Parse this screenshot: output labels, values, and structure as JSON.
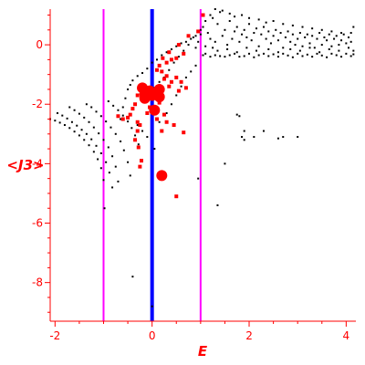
{
  "chart_data": {
    "type": "scatter",
    "title": "",
    "xlabel": "E",
    "ylabel": "<J3>",
    "xlim": [
      -2.1,
      4.2
    ],
    "ylim": [
      -9.3,
      1.2
    ],
    "x_ticks": [
      -2,
      0,
      2,
      4
    ],
    "y_ticks": [
      0,
      -2,
      -4,
      -6,
      -8
    ],
    "grid": false,
    "legend": "none",
    "colors": {
      "axis": "#ff0000",
      "small_points": "#000000",
      "red_points": "#ff0000",
      "center_line": "#0000ff",
      "side_lines": "#ff00ff"
    },
    "vertical_lines": [
      {
        "x": 0,
        "color": "#0000ff",
        "style": "thick"
      },
      {
        "x": -1,
        "color": "#ff00ff",
        "style": "thin"
      },
      {
        "x": 1,
        "color": "#ff00ff",
        "style": "thin"
      }
    ],
    "series": [
      {
        "marker": "dot",
        "color": "#000000",
        "description_points": [
          [
            -2.1,
            -2.5
          ],
          [
            -2.0,
            -2.55
          ],
          [
            -1.9,
            -2.62
          ],
          [
            -1.8,
            -2.7
          ],
          [
            -1.7,
            -2.8
          ],
          [
            -1.6,
            -2.92
          ],
          [
            -1.5,
            -3.05
          ],
          [
            -1.4,
            -3.2
          ],
          [
            -1.3,
            -3.38
          ],
          [
            -1.2,
            -3.6
          ],
          [
            -1.12,
            -3.85
          ],
          [
            -1.05,
            -4.15
          ],
          [
            -1.0,
            -4.55
          ],
          [
            -0.98,
            -5.5
          ],
          [
            -1.95,
            -2.3
          ],
          [
            -1.85,
            -2.38
          ],
          [
            -1.75,
            -2.48
          ],
          [
            -1.65,
            -2.6
          ],
          [
            -1.55,
            -2.72
          ],
          [
            -1.45,
            -2.86
          ],
          [
            -1.35,
            -3.0
          ],
          [
            -1.25,
            -3.18
          ],
          [
            -1.15,
            -3.4
          ],
          [
            -1.05,
            -3.65
          ],
          [
            -0.95,
            -3.95
          ],
          [
            -0.88,
            -4.3
          ],
          [
            -0.82,
            -4.8
          ],
          [
            -1.7,
            -2.1
          ],
          [
            -1.6,
            -2.2
          ],
          [
            -1.5,
            -2.32
          ],
          [
            -1.4,
            -2.45
          ],
          [
            -1.3,
            -2.6
          ],
          [
            -1.2,
            -2.78
          ],
          [
            -1.1,
            -2.98
          ],
          [
            -1.0,
            -3.2
          ],
          [
            -0.9,
            -3.45
          ],
          [
            -0.82,
            -3.75
          ],
          [
            -0.75,
            -4.1
          ],
          [
            -0.7,
            -4.6
          ],
          [
            -1.35,
            -2.0
          ],
          [
            -1.25,
            -2.1
          ],
          [
            -1.15,
            -2.25
          ],
          [
            -1.05,
            -2.4
          ],
          [
            -0.95,
            -2.58
          ],
          [
            -0.85,
            -2.78
          ],
          [
            -0.75,
            -3.0
          ],
          [
            -0.65,
            -3.25
          ],
          [
            -0.58,
            -3.55
          ],
          [
            -0.5,
            -3.95
          ],
          [
            -0.45,
            -4.4
          ],
          [
            -0.9,
            -1.9
          ],
          [
            -0.8,
            -2.05
          ],
          [
            -0.7,
            -2.2
          ],
          [
            -0.6,
            -2.38
          ],
          [
            -0.5,
            -2.58
          ],
          [
            -0.42,
            -2.8
          ],
          [
            -0.35,
            -3.05
          ],
          [
            -0.28,
            -3.35
          ],
          [
            -0.5,
            -1.5
          ],
          [
            -0.45,
            -1.35
          ],
          [
            -0.4,
            -1.2
          ],
          [
            -0.3,
            -1.05
          ],
          [
            -0.2,
            -0.95
          ],
          [
            -0.1,
            -0.8
          ],
          [
            0.0,
            -0.6
          ],
          [
            0.1,
            -0.5
          ],
          [
            0.2,
            -0.35
          ],
          [
            0.3,
            -0.25
          ],
          [
            0.4,
            -0.15
          ],
          [
            0.5,
            -0.05
          ],
          [
            0.6,
            0.05
          ],
          [
            0.7,
            0.1
          ],
          [
            0.8,
            0.2
          ],
          [
            0.9,
            0.3
          ],
          [
            1.0,
            0.35
          ],
          [
            -0.6,
            -2.1
          ],
          [
            -0.55,
            -1.8
          ],
          [
            -0.65,
            -2.5
          ],
          [
            -0.3,
            -2.7
          ],
          [
            -0.2,
            -2.9
          ],
          [
            -0.1,
            -3.1
          ],
          [
            0.05,
            -3.5
          ],
          [
            0.15,
            -2.6
          ],
          [
            0.3,
            -2.3
          ],
          [
            0.4,
            -2.0
          ],
          [
            0.5,
            -1.7
          ],
          [
            0.6,
            -1.4
          ],
          [
            0.7,
            -1.1
          ],
          [
            0.8,
            -0.9
          ],
          [
            0.9,
            -0.7
          ],
          [
            -0.4,
            -7.8
          ],
          [
            0.0,
            -8.8
          ],
          [
            0.95,
            -4.5
          ],
          [
            1.5,
            -4.0
          ],
          [
            1.35,
            -5.4
          ],
          [
            1.75,
            -2.35
          ],
          [
            1.8,
            -2.4
          ],
          [
            1.85,
            -3.1
          ],
          [
            1.9,
            -3.2
          ],
          [
            1.9,
            -2.9
          ],
          [
            2.1,
            -3.1
          ],
          [
            2.3,
            -2.9
          ],
          [
            2.6,
            -3.15
          ],
          [
            2.7,
            -3.1
          ],
          [
            3.0,
            -3.1
          ],
          [
            1.05,
            -0.35
          ],
          [
            1.1,
            -0.3
          ],
          [
            1.2,
            -0.4
          ],
          [
            1.3,
            -0.35
          ],
          [
            1.4,
            -0.38
          ],
          [
            1.5,
            -0.4
          ],
          [
            1.6,
            -0.35
          ],
          [
            1.7,
            -0.3
          ],
          [
            1.8,
            -0.4
          ],
          [
            1.9,
            -0.38
          ],
          [
            2.0,
            -0.3
          ],
          [
            2.1,
            -0.42
          ],
          [
            2.2,
            -0.35
          ],
          [
            2.3,
            -0.3
          ],
          [
            2.4,
            -0.38
          ],
          [
            2.5,
            -0.32
          ],
          [
            2.6,
            -0.4
          ],
          [
            2.7,
            -0.3
          ],
          [
            2.8,
            -0.36
          ],
          [
            2.9,
            -0.42
          ],
          [
            3.0,
            -0.3
          ],
          [
            3.1,
            -0.38
          ],
          [
            3.2,
            -0.33
          ],
          [
            3.3,
            -0.4
          ],
          [
            3.4,
            -0.3
          ],
          [
            3.5,
            -0.36
          ],
          [
            3.6,
            -0.42
          ],
          [
            3.7,
            -0.3
          ],
          [
            3.8,
            -0.35
          ],
          [
            3.9,
            -0.4
          ],
          [
            4.0,
            -0.3
          ],
          [
            4.1,
            -0.38
          ],
          [
            4.15,
            -0.32
          ],
          [
            1.0,
            0.5
          ],
          [
            1.05,
            0.6
          ],
          [
            1.1,
            0.8
          ],
          [
            1.15,
            0.4
          ],
          [
            1.2,
            0.2
          ],
          [
            1.25,
            0.9
          ],
          [
            1.3,
            0.1
          ],
          [
            1.35,
            0.7
          ],
          [
            1.4,
            1.1
          ],
          [
            1.45,
            0.3
          ],
          [
            1.5,
            0.5
          ],
          [
            1.55,
            0.0
          ],
          [
            1.6,
            0.8
          ],
          [
            1.65,
            0.2
          ],
          [
            1.7,
            0.45
          ],
          [
            1.75,
            0.6
          ],
          [
            1.8,
            0.1
          ],
          [
            1.85,
            0.35
          ],
          [
            1.9,
            0.5
          ],
          [
            1.95,
            0.25
          ],
          [
            2.0,
            0.7
          ],
          [
            2.05,
            0.15
          ],
          [
            2.1,
            0.4
          ],
          [
            2.15,
            0.55
          ],
          [
            2.2,
            -0.05
          ],
          [
            2.25,
            0.35
          ],
          [
            2.3,
            0.6
          ],
          [
            2.35,
            0.2
          ],
          [
            2.4,
            0.45
          ],
          [
            2.45,
            0.05
          ],
          [
            2.5,
            0.3
          ],
          [
            2.55,
            0.5
          ],
          [
            2.6,
            0.15
          ],
          [
            2.65,
            0.4
          ],
          [
            2.7,
            -0.1
          ],
          [
            2.75,
            0.25
          ],
          [
            2.8,
            0.45
          ],
          [
            2.85,
            0.1
          ],
          [
            2.9,
            0.35
          ],
          [
            2.95,
            0.0
          ],
          [
            3.0,
            0.2
          ],
          [
            3.05,
            0.4
          ],
          [
            3.1,
            -0.05
          ],
          [
            3.15,
            0.25
          ],
          [
            3.2,
            0.35
          ],
          [
            3.25,
            0.05
          ],
          [
            3.3,
            0.3
          ],
          [
            3.35,
            -0.1
          ],
          [
            3.4,
            0.2
          ],
          [
            3.45,
            0.4
          ],
          [
            3.5,
            0.0
          ],
          [
            3.55,
            0.25
          ],
          [
            3.6,
            0.15
          ],
          [
            3.65,
            0.35
          ],
          [
            3.7,
            -0.05
          ],
          [
            3.75,
            0.2
          ],
          [
            3.8,
            0.3
          ],
          [
            3.85,
            0.0
          ],
          [
            3.9,
            0.15
          ],
          [
            3.95,
            0.35
          ],
          [
            4.0,
            0.05
          ],
          [
            4.05,
            0.25
          ],
          [
            4.1,
            0.1
          ],
          [
            4.15,
            -0.2
          ],
          [
            1.2,
            1.0
          ],
          [
            1.3,
            1.2
          ],
          [
            1.45,
            1.15
          ],
          [
            1.6,
            1.05
          ],
          [
            1.7,
            0.95
          ],
          [
            1.85,
            1.0
          ],
          [
            2.0,
            0.9
          ],
          [
            2.2,
            0.85
          ],
          [
            2.35,
            0.75
          ],
          [
            2.5,
            0.8
          ],
          [
            2.7,
            0.7
          ],
          [
            2.9,
            0.65
          ],
          [
            3.1,
            0.6
          ],
          [
            3.3,
            0.55
          ],
          [
            3.5,
            0.5
          ],
          [
            3.7,
            0.45
          ],
          [
            3.9,
            0.4
          ],
          [
            4.1,
            0.4
          ],
          [
            4.15,
            0.6
          ],
          [
            1.1,
            -0.05
          ],
          [
            1.25,
            -0.1
          ],
          [
            1.35,
            -0.2
          ],
          [
            1.55,
            -0.15
          ],
          [
            1.75,
            -0.25
          ],
          [
            1.95,
            -0.1
          ],
          [
            2.15,
            -0.2
          ],
          [
            2.4,
            -0.15
          ],
          [
            2.6,
            -0.25
          ],
          [
            2.85,
            -0.15
          ],
          [
            3.05,
            -0.2
          ],
          [
            3.25,
            -0.1
          ],
          [
            3.45,
            -0.25
          ],
          [
            3.65,
            -0.15
          ],
          [
            3.85,
            -0.2
          ],
          [
            4.05,
            -0.1
          ],
          [
            0.85,
            0.25
          ],
          [
            0.9,
            -0.1
          ],
          [
            0.95,
            0.1
          ],
          [
            0.65,
            -0.2
          ],
          [
            0.75,
            0.0
          ],
          [
            0.55,
            -0.4
          ],
          [
            0.45,
            -0.6
          ],
          [
            0.35,
            -0.85
          ],
          [
            0.25,
            -1.1
          ],
          [
            0.15,
            -1.25
          ],
          [
            0.05,
            -1.45
          ],
          [
            -0.05,
            -1.6
          ]
        ]
      },
      {
        "marker": "square",
        "color": "#ff0000",
        "description_points": [
          [
            1.05,
            1.0
          ],
          [
            0.95,
            0.45
          ],
          [
            0.75,
            0.3
          ],
          [
            0.55,
            0.0
          ],
          [
            0.5,
            -0.45
          ],
          [
            0.4,
            -0.5
          ],
          [
            0.3,
            -0.6
          ],
          [
            0.22,
            -0.45
          ],
          [
            0.15,
            -0.7
          ],
          [
            0.35,
            -0.25
          ],
          [
            0.65,
            -0.3
          ],
          [
            0.1,
            -0.85
          ],
          [
            0.2,
            -0.9
          ],
          [
            0.3,
            -1.05
          ],
          [
            0.4,
            -1.25
          ],
          [
            0.55,
            -1.55
          ],
          [
            0.6,
            -1.25
          ],
          [
            0.7,
            -1.45
          ],
          [
            0.5,
            -1.1
          ],
          [
            0.25,
            -1.15
          ],
          [
            0.35,
            -1.4
          ],
          [
            -0.2,
            -1.4
          ],
          [
            -0.15,
            -1.6
          ],
          [
            -0.3,
            -1.7
          ],
          [
            -0.35,
            -2.0
          ],
          [
            -0.4,
            -2.15
          ],
          [
            -0.45,
            -2.35
          ],
          [
            -0.5,
            -2.45
          ],
          [
            -0.6,
            -2.5
          ],
          [
            -0.7,
            -2.4
          ],
          [
            -0.3,
            -2.6
          ],
          [
            -0.25,
            -2.7
          ],
          [
            -0.3,
            -2.9
          ],
          [
            -0.35,
            -3.2
          ],
          [
            -0.28,
            -3.45
          ],
          [
            -0.22,
            -3.9
          ],
          [
            -0.25,
            -4.1
          ],
          [
            0.25,
            -2.35
          ],
          [
            0.3,
            -2.6
          ],
          [
            0.45,
            -2.7
          ],
          [
            0.65,
            -2.95
          ],
          [
            0.2,
            -2.9
          ],
          [
            0.5,
            -5.1
          ],
          [
            -0.05,
            -2.1
          ],
          [
            0.1,
            -2.5
          ],
          [
            -0.1,
            -2.3
          ],
          [
            0.15,
            -1.95
          ]
        ]
      },
      {
        "marker": "large-circle",
        "color": "#ff0000",
        "description_points": [
          [
            -0.2,
            -1.45
          ],
          [
            -0.15,
            -1.65
          ],
          [
            -0.05,
            -1.55
          ],
          [
            0.15,
            -1.5
          ],
          [
            0.15,
            -1.75
          ],
          [
            -0.15,
            -1.8
          ],
          [
            0.0,
            -1.7
          ],
          [
            0.2,
            -4.4
          ],
          [
            0.05,
            -2.2
          ]
        ]
      }
    ]
  }
}
